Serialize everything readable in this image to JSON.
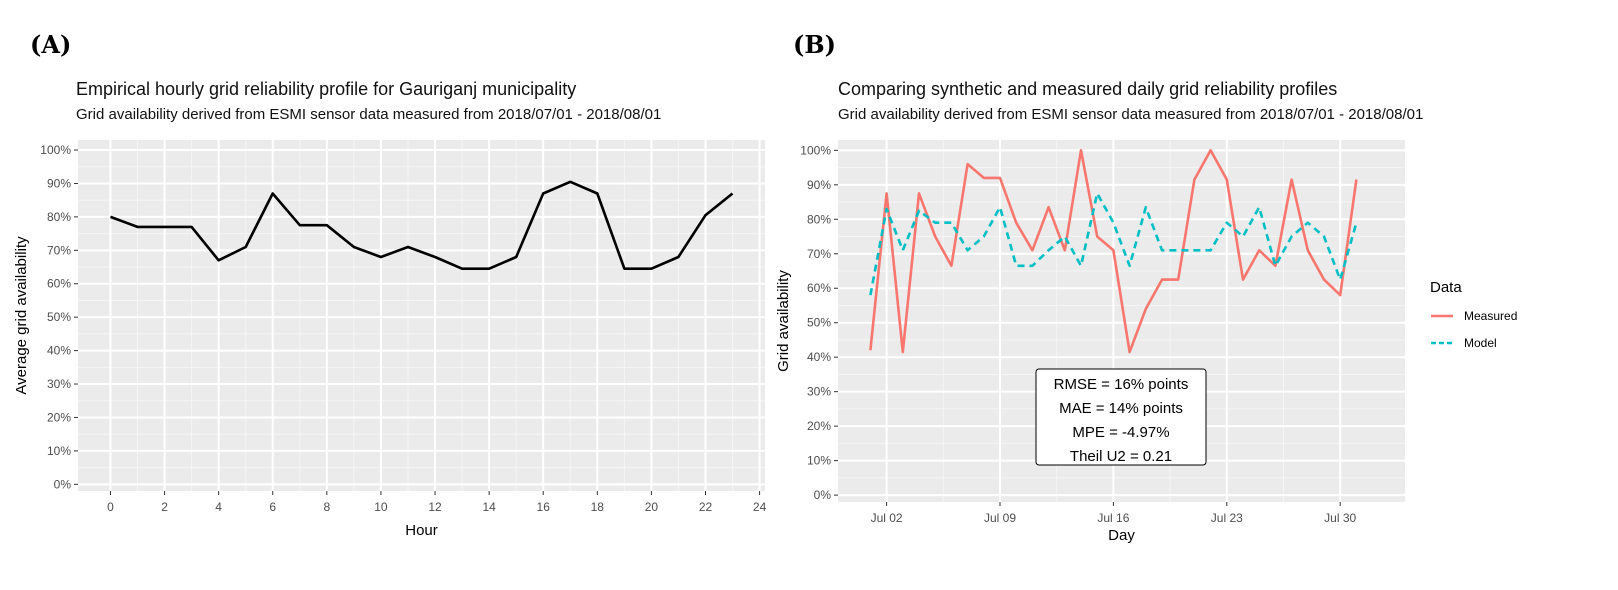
{
  "chart_data": [
    {
      "panel": "(A)",
      "type": "line",
      "title": "Empirical hourly grid reliability profile for Gauriganj municipality",
      "subtitle": "Grid availability derived from ESMI sensor data measured from 2018/07/01 - 2018/08/01",
      "xlabel": "Hour",
      "ylabel": "Average grid availability",
      "xlim": [
        -1.2,
        24.2
      ],
      "ylim": [
        -0.02,
        1.03
      ],
      "x_ticks": [
        0,
        2,
        4,
        6,
        8,
        10,
        12,
        14,
        16,
        18,
        20,
        22,
        24
      ],
      "y_ticks": [
        "0%",
        "10%",
        "20%",
        "30%",
        "40%",
        "50%",
        "60%",
        "70%",
        "80%",
        "90%",
        "100%"
      ],
      "series": [
        {
          "color": "#000000",
          "x": [
            0,
            1,
            2,
            3,
            4,
            5,
            6,
            7,
            8,
            9,
            10,
            11,
            12,
            13,
            14,
            15,
            16,
            17,
            18,
            19,
            20,
            21,
            22,
            23
          ],
          "y": [
            0.8,
            0.77,
            0.77,
            0.77,
            0.67,
            0.71,
            0.87,
            0.775,
            0.775,
            0.71,
            0.68,
            0.71,
            0.68,
            0.645,
            0.645,
            0.68,
            0.87,
            0.905,
            0.87,
            0.645,
            0.645,
            0.68,
            0.805,
            0.87
          ]
        }
      ]
    },
    {
      "panel": "(B)",
      "type": "line",
      "title": "Comparing synthetic and measured daily grid reliability profiles",
      "subtitle": "Grid availability derived from ESMI sensor data measured from 2018/07/01 - 2018/08/01",
      "xlabel": "Day",
      "ylabel": "Grid availability",
      "xlim": [
        "2018-06-29",
        "2018-08-03"
      ],
      "ylim": [
        -0.02,
        1.03
      ],
      "x_ticks": [
        "2018-07-02",
        "2018-07-09",
        "2018-07-16",
        "2018-07-23",
        "2018-07-30"
      ],
      "x_tick_labels": [
        "Jul 02",
        "Jul 09",
        "Jul 16",
        "Jul 23",
        "Jul 30"
      ],
      "y_ticks": [
        "0%",
        "10%",
        "20%",
        "30%",
        "40%",
        "50%",
        "60%",
        "70%",
        "80%",
        "90%",
        "100%"
      ],
      "legend": {
        "title": "Data",
        "position": "right"
      },
      "x": [
        "2018-07-01",
        "2018-07-02",
        "2018-07-03",
        "2018-07-04",
        "2018-07-05",
        "2018-07-06",
        "2018-07-07",
        "2018-07-08",
        "2018-07-09",
        "2018-07-10",
        "2018-07-11",
        "2018-07-12",
        "2018-07-13",
        "2018-07-14",
        "2018-07-15",
        "2018-07-16",
        "2018-07-17",
        "2018-07-18",
        "2018-07-19",
        "2018-07-20",
        "2018-07-21",
        "2018-07-22",
        "2018-07-23",
        "2018-07-24",
        "2018-07-25",
        "2018-07-26",
        "2018-07-27",
        "2018-07-28",
        "2018-07-29",
        "2018-07-30",
        "2018-07-31"
      ],
      "series": [
        {
          "name": "Measured",
          "color": "#F8766D",
          "style": "solid",
          "values": [
            0.42,
            0.875,
            0.415,
            0.875,
            0.75,
            0.665,
            0.96,
            0.92,
            0.92,
            0.79,
            0.71,
            0.835,
            0.71,
            1.0,
            0.75,
            0.71,
            0.415,
            0.54,
            0.625,
            0.625,
            0.915,
            1.0,
            0.915,
            0.625,
            0.71,
            0.665,
            0.915,
            0.71,
            0.625,
            0.58,
            0.915
          ]
        },
        {
          "name": "Model",
          "color": "#00BFC4",
          "style": "dashed",
          "values": [
            0.58,
            0.83,
            0.71,
            0.825,
            0.79,
            0.79,
            0.71,
            0.75,
            0.835,
            0.665,
            0.665,
            0.71,
            0.75,
            0.665,
            0.875,
            0.79,
            0.665,
            0.835,
            0.71,
            0.71,
            0.71,
            0.71,
            0.79,
            0.75,
            0.835,
            0.665,
            0.75,
            0.79,
            0.75,
            0.625,
            0.79
          ]
        }
      ],
      "annotation": [
        "RMSE = 16% points",
        "MAE = 14% points",
        "MPE = -4.97%",
        "Theil U2 = 0.21"
      ]
    }
  ]
}
